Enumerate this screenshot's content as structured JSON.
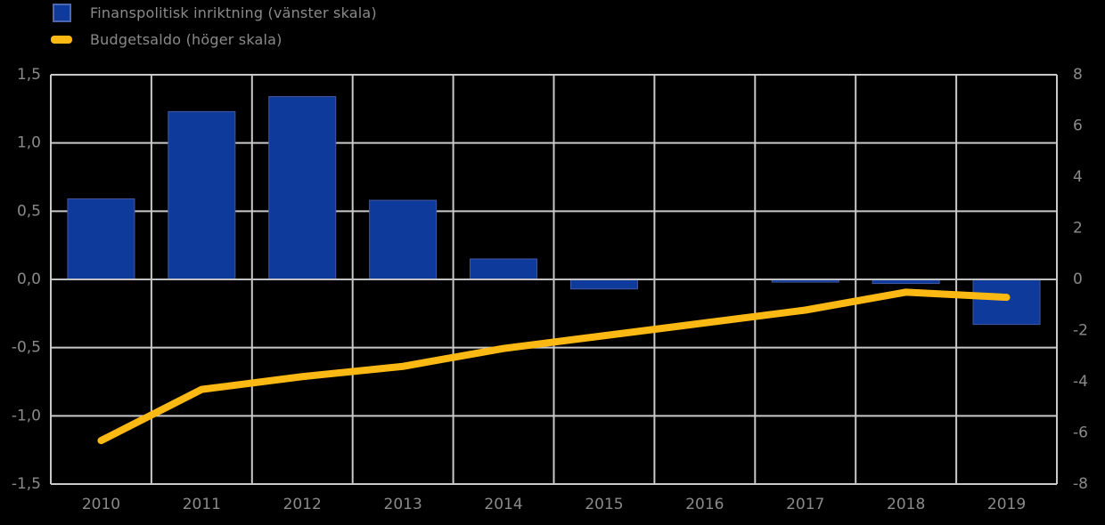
{
  "chart_data": {
    "type": "combo-bar-line",
    "title": "",
    "categories": [
      "2010",
      "2011",
      "2012",
      "2013",
      "2014",
      "2015",
      "2016",
      "2017",
      "2018",
      "2019"
    ],
    "series": [
      {
        "name": "Finanspolitisk inriktning (vänster skala)",
        "chart": "bar",
        "axis": "left",
        "color": "#0d3a9b",
        "values": [
          0.59,
          1.23,
          1.34,
          0.58,
          0.15,
          -0.07,
          0.0,
          -0.02,
          -0.03,
          -0.33
        ]
      },
      {
        "name": "Budgetsaldo (höger skala)",
        "chart": "line",
        "axis": "right",
        "color": "#fcb813",
        "values": [
          -6.3,
          -4.3,
          -3.8,
          -3.4,
          -2.7,
          -2.2,
          -1.7,
          -1.2,
          -0.5,
          -0.7
        ]
      }
    ],
    "left_axis": {
      "min": -1.5,
      "max": 1.5,
      "step": 0.5,
      "tick_labels": [
        "1,5",
        "1,0",
        "0,5",
        "0,0",
        "-0,5",
        "-1,0",
        "-1,5"
      ]
    },
    "right_axis": {
      "min": -8,
      "max": 8,
      "step": 2,
      "tick_labels": [
        "8",
        "6",
        "4",
        "2",
        "0",
        "-2",
        "-4",
        "-6",
        "-8"
      ]
    },
    "grid": true,
    "legend_position": "top-left",
    "xlabel": ""
  },
  "style": {
    "background": "#000000",
    "grid_color": "#c9c9c9",
    "zero_line_color": "#c2c2c2",
    "axis_text_color": "#8a8a8a",
    "bar_border_color": "#44589f",
    "legend_square_border": "#4d68b3"
  }
}
